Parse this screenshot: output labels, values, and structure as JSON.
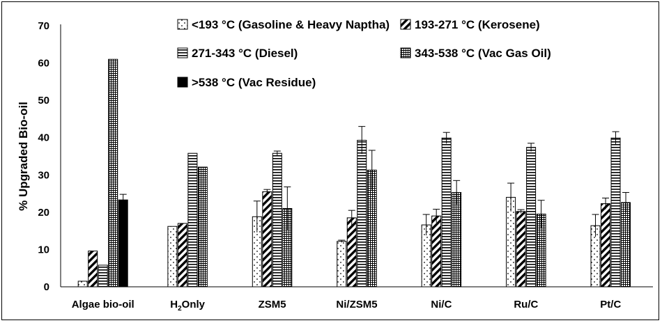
{
  "chart_data": {
    "type": "bar",
    "title": "",
    "xlabel": "",
    "ylabel": "% Upgraded Bio-oil",
    "ylim": [
      0,
      70
    ],
    "yticks": [
      0,
      10,
      20,
      30,
      40,
      50,
      60,
      70
    ],
    "grid": false,
    "legend_position": "top-right",
    "categories": [
      {
        "label": "Algae bio-oil"
      },
      {
        "label": "H",
        "sub": "2",
        "suffix": "Only"
      },
      {
        "label": "ZSM5"
      },
      {
        "label": "Ni/ZSM5"
      },
      {
        "label": "Ni/C"
      },
      {
        "label": "Ru/C"
      },
      {
        "label": "Pt/C"
      }
    ],
    "series": [
      {
        "name": "<193 °C (Gasoline & Heavy Naptha)",
        "pattern": "dots",
        "values": [
          1.5,
          16.2,
          18.8,
          12.2,
          16.6,
          24.0,
          16.4
        ],
        "errors": [
          null,
          null,
          4.2,
          0.3,
          2.8,
          3.8,
          3.0
        ]
      },
      {
        "name": "193-271 °C (Kerosene)",
        "pattern": "diagonal",
        "values": [
          9.6,
          17.0,
          25.5,
          18.5,
          19.0,
          20.2,
          22.3
        ],
        "errors": [
          null,
          null,
          0.6,
          2.0,
          1.8,
          0.5,
          1.5
        ]
      },
      {
        "name": "271-343 °C (Diesel)",
        "pattern": "horizontal",
        "values": [
          5.8,
          35.8,
          35.8,
          39.3,
          39.9,
          37.4,
          39.9
        ],
        "errors": [
          null,
          null,
          0.6,
          3.7,
          1.5,
          1.1,
          1.7
        ]
      },
      {
        "name": "343-538 °C (Vac Gas Oil)",
        "pattern": "crosshatch",
        "values": [
          61.0,
          32.1,
          21.0,
          31.3,
          25.3,
          19.5,
          22.6
        ],
        "errors": [
          null,
          null,
          5.8,
          5.3,
          3.2,
          3.7,
          2.7
        ]
      },
      {
        "name": ">538 °C (Vac Residue)",
        "pattern": "solid",
        "values": [
          23.3,
          null,
          null,
          null,
          null,
          null,
          null
        ],
        "errors": [
          1.5,
          null,
          null,
          null,
          null,
          null,
          null
        ]
      }
    ]
  }
}
